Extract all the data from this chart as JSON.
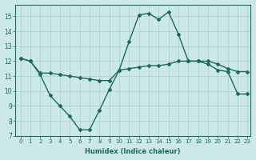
{
  "xlabel": "Humidex (Indice chaleur)",
  "xlim": [
    -0.5,
    23.3
  ],
  "ylim": [
    7,
    15.8
  ],
  "yticks": [
    7,
    8,
    9,
    10,
    11,
    12,
    13,
    14,
    15
  ],
  "xticks": [
    0,
    1,
    2,
    3,
    4,
    5,
    6,
    7,
    8,
    9,
    10,
    11,
    12,
    13,
    14,
    15,
    16,
    17,
    18,
    19,
    20,
    21,
    22,
    23
  ],
  "xtick_labels": [
    "0",
    "1",
    "2",
    "3",
    "4",
    "5",
    "6",
    "7",
    "8",
    "9",
    "10",
    "11",
    "12",
    "13",
    "14",
    "15",
    "16",
    "17",
    "18",
    "19",
    "20",
    "21",
    "22",
    "23"
  ],
  "line1_x": [
    0,
    1,
    2,
    3,
    4,
    5,
    6,
    7,
    8,
    9,
    10,
    11,
    12,
    13,
    14,
    15,
    16,
    17,
    18,
    19,
    20,
    21,
    22,
    23
  ],
  "line1_y": [
    12.2,
    12.0,
    11.2,
    11.2,
    11.1,
    11.0,
    10.9,
    10.8,
    10.7,
    10.7,
    11.4,
    11.5,
    11.6,
    11.7,
    11.7,
    11.8,
    12.0,
    12.0,
    12.0,
    12.0,
    11.8,
    11.5,
    11.3,
    11.3
  ],
  "line2_x": [
    0,
    1,
    2,
    3,
    4,
    5,
    6,
    7,
    8,
    9,
    10,
    11,
    12,
    13,
    14,
    15,
    16,
    17,
    18,
    19,
    20,
    21,
    22,
    23
  ],
  "line2_y": [
    12.2,
    12.0,
    11.1,
    9.7,
    9.0,
    8.3,
    7.4,
    7.4,
    8.7,
    10.1,
    11.4,
    13.3,
    15.1,
    15.2,
    14.8,
    15.3,
    13.8,
    12.0,
    12.0,
    11.8,
    11.4,
    11.3,
    9.8,
    9.8
  ],
  "line_color": "#1a6b5a",
  "bg_color": "#cce8e8",
  "grid_color": "#aacece",
  "marker": "D",
  "marker_size": 2.0,
  "linewidth": 1.0
}
